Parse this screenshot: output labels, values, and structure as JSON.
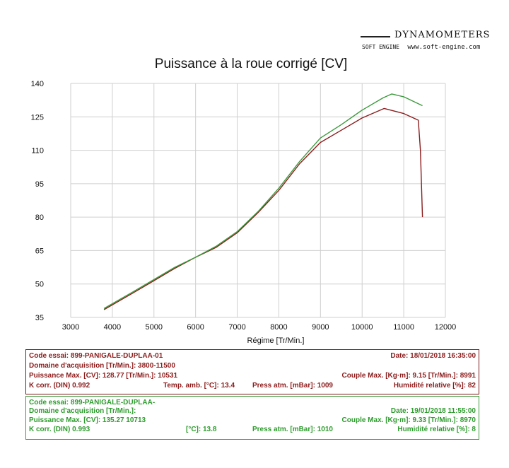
{
  "brand": {
    "name": "DYNAMOMETERS",
    "logo_text": "SOFT ENGINE",
    "url": "www.soft-engine.com"
  },
  "colors": {
    "run1": "#8b1c1c",
    "run2": "#3c9a3c",
    "grid": "#cfcfcf"
  },
  "chart_data": {
    "type": "line",
    "title": "Puissance à la roue corrigé [CV]",
    "xlabel": "Régime [Tr/Min.]",
    "ylabel": "",
    "xlim": [
      3000,
      12000
    ],
    "ylim": [
      35,
      140
    ],
    "xticks": [
      3000,
      4000,
      5000,
      6000,
      7000,
      8000,
      9000,
      10000,
      11000,
      12000
    ],
    "yticks": [
      35,
      50,
      65,
      80,
      95,
      110,
      125,
      140
    ],
    "grid": true,
    "series": [
      {
        "color": "#8b1c1c",
        "points": [
          [
            3800,
            38.5
          ],
          [
            4500,
            46
          ],
          [
            5000,
            51.5
          ],
          [
            5500,
            57
          ],
          [
            6000,
            62
          ],
          [
            6500,
            66.5
          ],
          [
            7000,
            73
          ],
          [
            7500,
            82
          ],
          [
            8000,
            92
          ],
          [
            8500,
            104
          ],
          [
            9000,
            113.5
          ],
          [
            9500,
            119
          ],
          [
            10000,
            124.5
          ],
          [
            10531,
            128.77
          ],
          [
            11000,
            126.5
          ],
          [
            11350,
            123.5
          ],
          [
            11400,
            110
          ],
          [
            11450,
            80
          ]
        ]
      },
      {
        "color": "#3c9a3c",
        "points": [
          [
            3800,
            39
          ],
          [
            4500,
            46.5
          ],
          [
            5000,
            52
          ],
          [
            5500,
            57.5
          ],
          [
            6000,
            62
          ],
          [
            6500,
            67
          ],
          [
            7000,
            73.5
          ],
          [
            7500,
            82.5
          ],
          [
            8000,
            93
          ],
          [
            8500,
            105
          ],
          [
            9000,
            115.5
          ],
          [
            9500,
            121.5
          ],
          [
            10000,
            128
          ],
          [
            10500,
            133.5
          ],
          [
            10713,
            135.27
          ],
          [
            11000,
            134
          ],
          [
            11450,
            130
          ]
        ]
      }
    ]
  },
  "runs": [
    {
      "code": "Code essai: 899-PANIGALE-DUPLAA-01",
      "date": "Date: 18/01/2018   16:35:00",
      "domain": "Domaine d'acquisition [Tr/Min.]: 3800-11500",
      "power_max": "Puissance Max. [CV]: 128.77   [Tr/Min.]: 10531",
      "torque_max": "Couple Max. [Kg·m]: 9.15   [Tr/Min.]: 8991",
      "k_corr": "K corr. (DIN)   0.992",
      "temp": "Temp. amb. [°C]: 13.4",
      "press": "Press atm. [mBar]: 1009",
      "humidity": "Humidité relative [%]: 82"
    },
    {
      "code": "Code essai: 899-PANIGALE-DUPLAA-",
      "date": "Date: 19/01/2018   11:55:00",
      "domain": "Domaine d'acquisition [Tr/Min.]:",
      "power_max": "Puissance Max. [CV]: 135.27   10713",
      "torque_max": "Couple Max. [Kg·m]: 9.33   [Tr/Min.]: 8970",
      "k_corr": "K corr. (DIN)   0.993",
      "temp": "[°C]: 13.8",
      "press": "Press atm. [mBar]: 1010",
      "humidity": "Humidité relative [%]: 8"
    }
  ]
}
